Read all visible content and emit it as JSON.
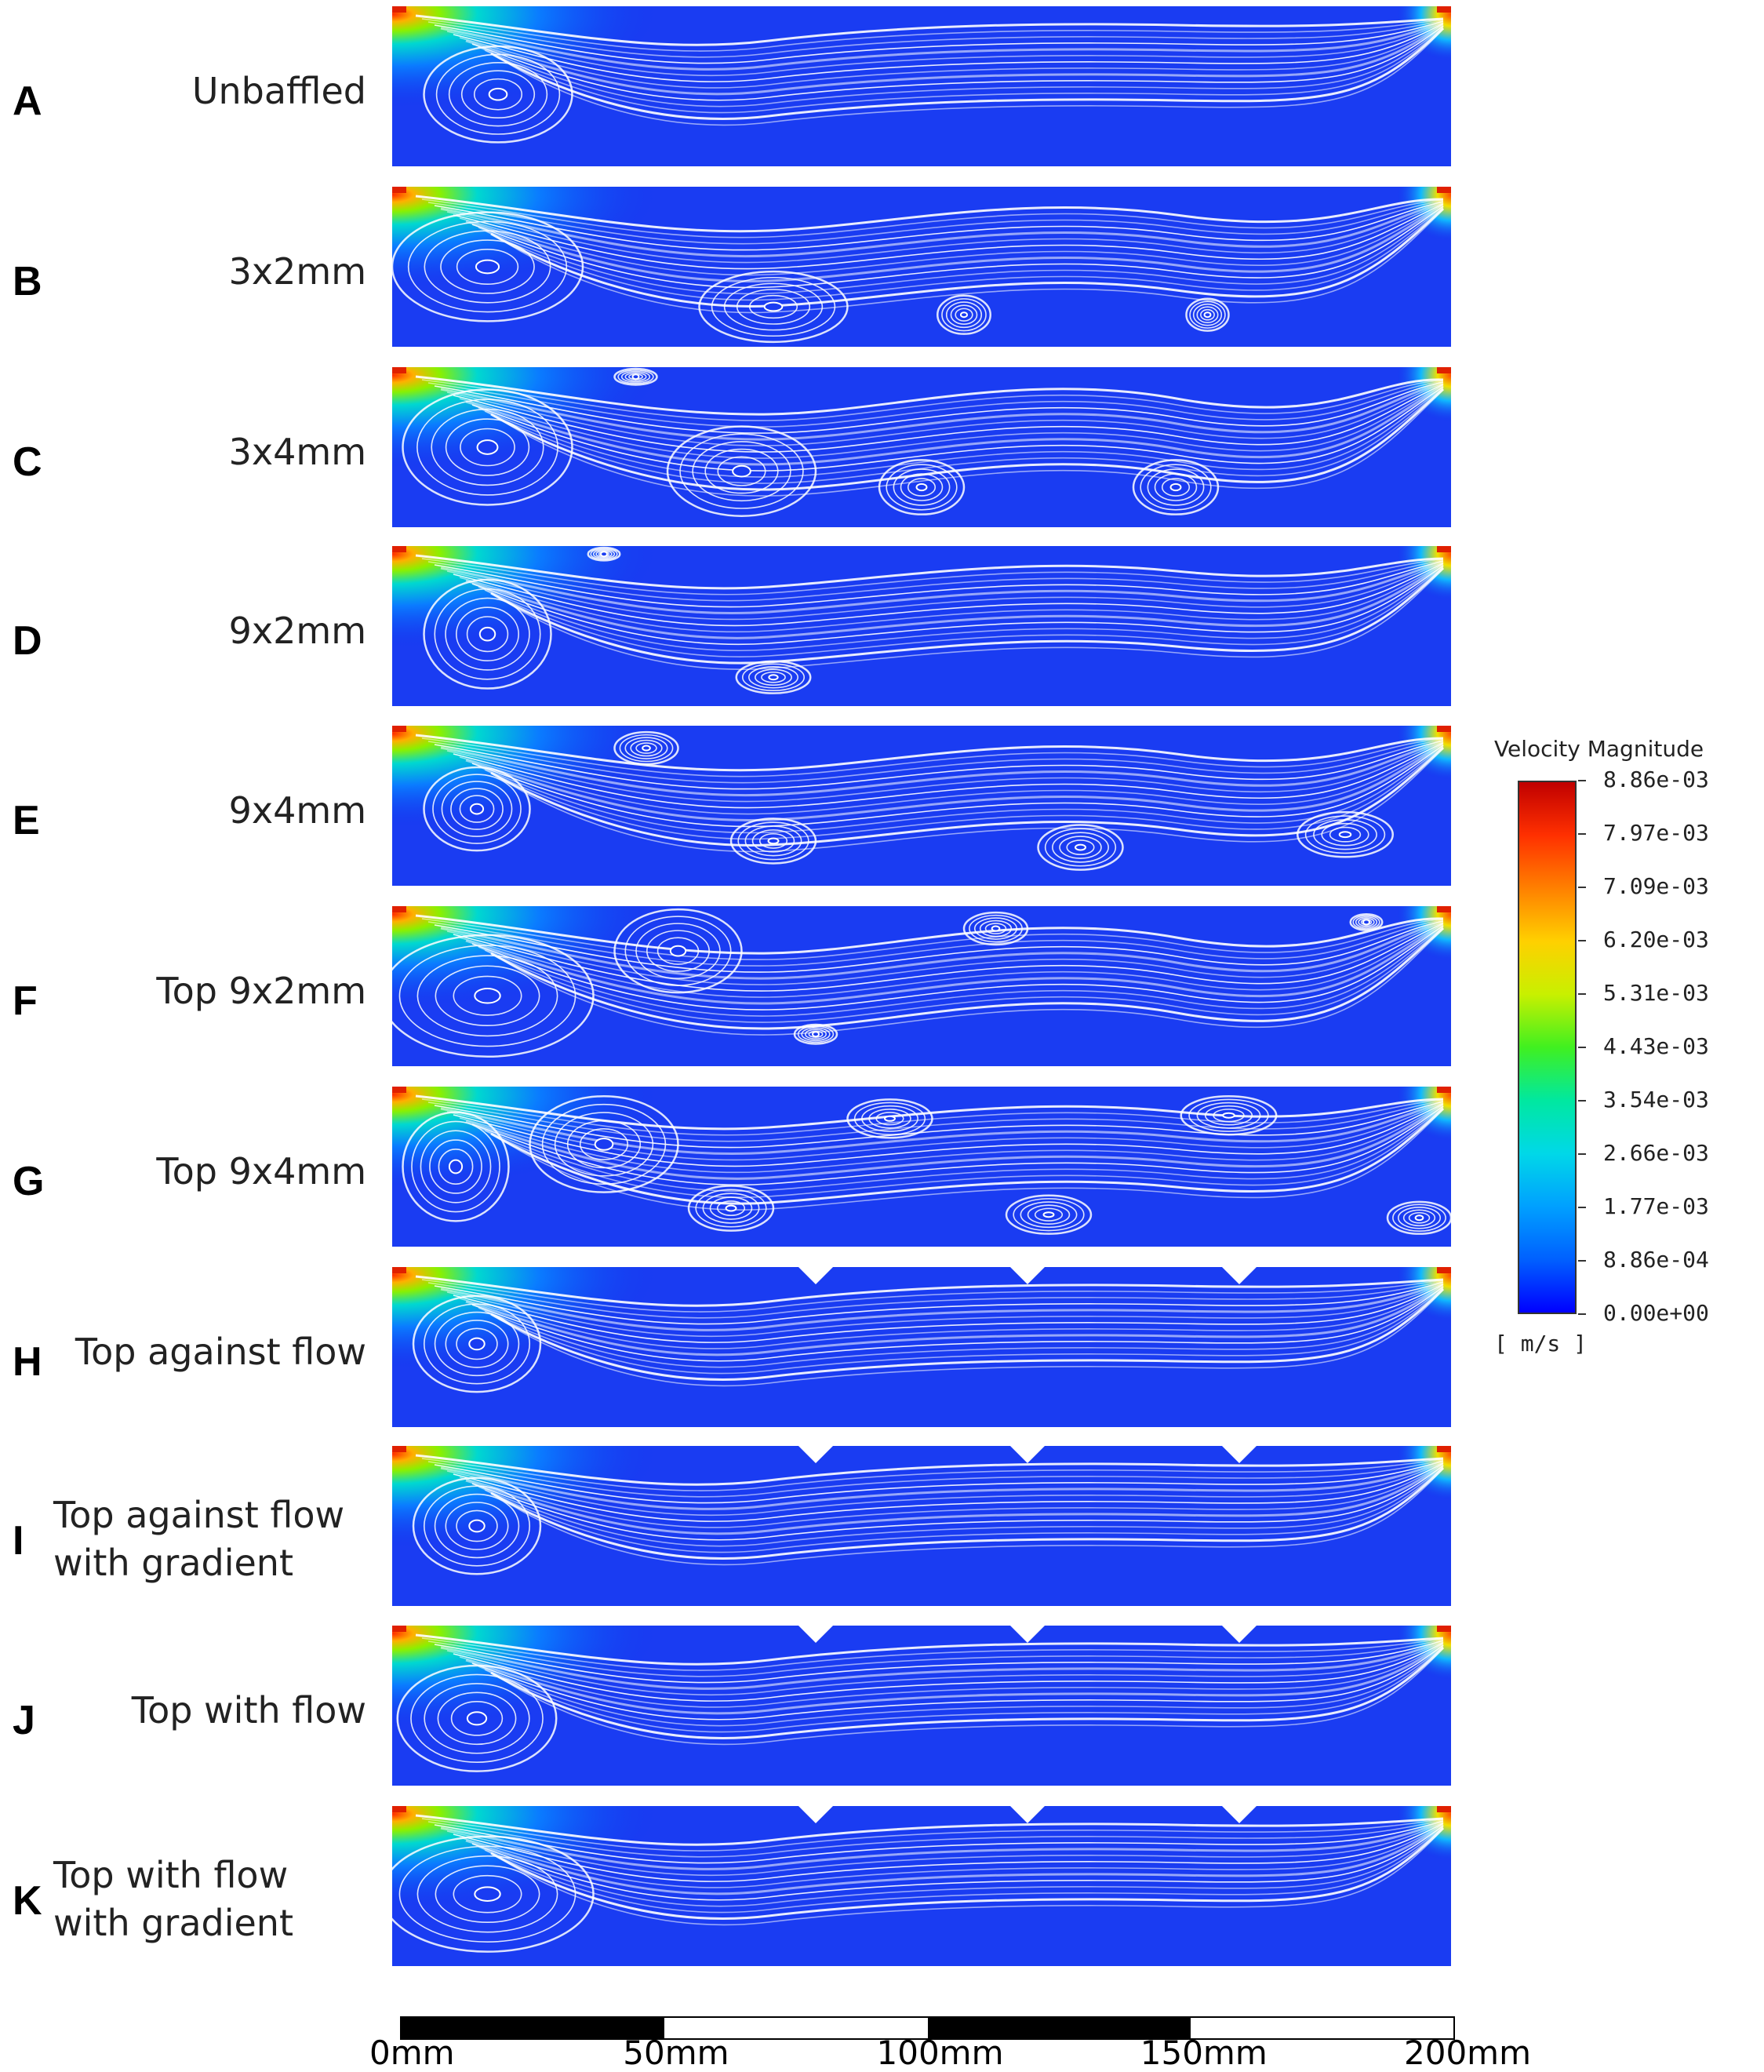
{
  "panels": [
    {
      "letter": "A",
      "label": "Unbaffled",
      "vortices": [
        [
          0.1,
          0.55,
          0.07,
          0.3
        ]
      ],
      "baffles": []
    },
    {
      "letter": "B",
      "label": "3x2mm",
      "vortices": [
        [
          0.09,
          0.5,
          0.09,
          0.34
        ],
        [
          0.36,
          0.75,
          0.07,
          0.22
        ],
        [
          0.54,
          0.8,
          0.025,
          0.12
        ],
        [
          0.77,
          0.8,
          0.02,
          0.1
        ]
      ],
      "baffles": []
    },
    {
      "letter": "C",
      "label": "3x4mm",
      "vortices": [
        [
          0.09,
          0.5,
          0.08,
          0.36
        ],
        [
          0.33,
          0.65,
          0.07,
          0.28
        ],
        [
          0.5,
          0.75,
          0.04,
          0.17
        ],
        [
          0.74,
          0.75,
          0.04,
          0.17
        ],
        [
          0.23,
          0.06,
          0.02,
          0.05
        ]
      ],
      "baffles": []
    },
    {
      "letter": "D",
      "label": "9x2mm",
      "vortices": [
        [
          0.09,
          0.55,
          0.06,
          0.34
        ],
        [
          0.36,
          0.82,
          0.035,
          0.1
        ],
        [
          0.2,
          0.05,
          0.015,
          0.04
        ]
      ],
      "baffles": []
    },
    {
      "letter": "E",
      "label": "9x4mm",
      "vortices": [
        [
          0.08,
          0.52,
          0.05,
          0.26
        ],
        [
          0.24,
          0.14,
          0.03,
          0.1
        ],
        [
          0.36,
          0.72,
          0.04,
          0.14
        ],
        [
          0.65,
          0.76,
          0.04,
          0.14
        ],
        [
          0.9,
          0.68,
          0.045,
          0.14
        ]
      ],
      "baffles": []
    },
    {
      "letter": "F",
      "label": "Top 9x2mm",
      "vortices": [
        [
          0.09,
          0.56,
          0.1,
          0.38
        ],
        [
          0.27,
          0.28,
          0.06,
          0.26
        ],
        [
          0.57,
          0.14,
          0.03,
          0.1
        ],
        [
          0.92,
          0.1,
          0.015,
          0.05
        ],
        [
          0.4,
          0.8,
          0.02,
          0.06
        ]
      ],
      "baffles": []
    },
    {
      "letter": "G",
      "label": "Top 9x4mm",
      "vortices": [
        [
          0.06,
          0.5,
          0.05,
          0.34
        ],
        [
          0.2,
          0.36,
          0.07,
          0.3
        ],
        [
          0.47,
          0.2,
          0.04,
          0.12
        ],
        [
          0.79,
          0.18,
          0.045,
          0.12
        ],
        [
          0.32,
          0.76,
          0.04,
          0.14
        ],
        [
          0.62,
          0.8,
          0.04,
          0.12
        ],
        [
          0.97,
          0.82,
          0.03,
          0.1
        ]
      ],
      "baffles": []
    },
    {
      "letter": "H",
      "label": "Top against flow",
      "vortices": [
        [
          0.08,
          0.48,
          0.06,
          0.3
        ]
      ],
      "baffles": [
        0.4,
        0.6,
        0.8
      ]
    },
    {
      "letter": "I",
      "label": "Top against flow\nwith gradient",
      "vortices": [
        [
          0.08,
          0.5,
          0.06,
          0.3
        ]
      ],
      "baffles": [
        0.4,
        0.6,
        0.8
      ]
    },
    {
      "letter": "J",
      "label": "Top with flow",
      "vortices": [
        [
          0.08,
          0.58,
          0.075,
          0.33
        ]
      ],
      "baffles": [
        0.4,
        0.6,
        0.8
      ]
    },
    {
      "letter": "K",
      "label": "Top with flow\nwith gradient",
      "vortices": [
        [
          0.09,
          0.55,
          0.1,
          0.36
        ]
      ],
      "baffles": [
        0.4,
        0.6,
        0.8
      ]
    }
  ],
  "legend": {
    "title": "Velocity Magnitude",
    "unit": "[ m/s ]",
    "ticks": [
      "8.86e-03",
      "7.97e-03",
      "7.09e-03",
      "6.20e-03",
      "5.31e-03",
      "4.43e-03",
      "3.54e-03",
      "2.66e-03",
      "1.77e-03",
      "8.86e-04",
      "0.00e+00"
    ]
  },
  "scale": {
    "labels": [
      "0mm",
      "50mm",
      "100mm",
      "150mm",
      "200mm"
    ],
    "segments": [
      "black",
      "white",
      "black",
      "white"
    ]
  }
}
